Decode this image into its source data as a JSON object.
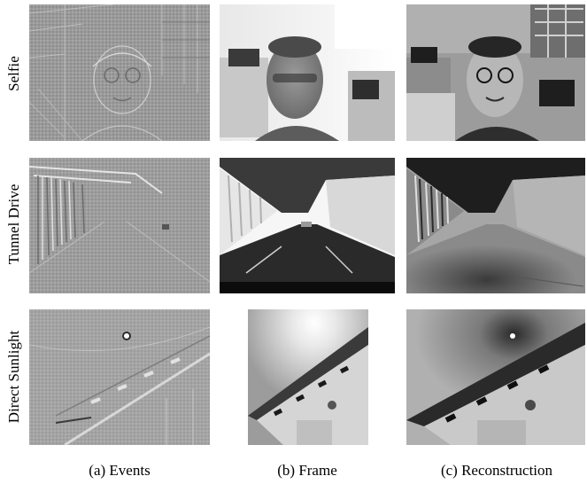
{
  "rows": [
    {
      "label": "Selfie"
    },
    {
      "label": "Tunnel Drive"
    },
    {
      "label": "Direct Sunlight"
    }
  ],
  "captions": [
    {
      "prefix": "(a)",
      "text": "Events"
    },
    {
      "prefix": "(b)",
      "text": "Frame"
    },
    {
      "prefix": "(c)",
      "text": "Reconstruction"
    }
  ]
}
